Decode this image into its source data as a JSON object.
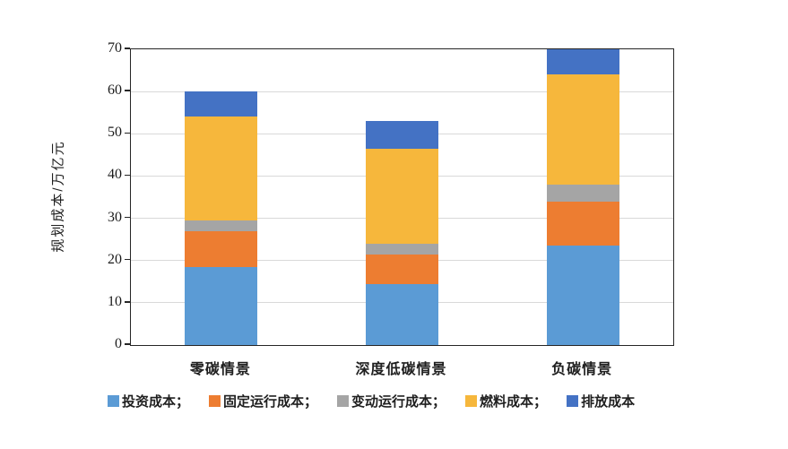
{
  "chart_data": {
    "type": "bar",
    "stacked": true,
    "title": "",
    "xlabel": "",
    "ylabel": "规划成本/万亿元",
    "ylim": [
      0,
      70
    ],
    "yticks": [
      0,
      10,
      20,
      30,
      40,
      50,
      60,
      70
    ],
    "grid": true,
    "legend_position": "bottom",
    "categories": [
      "零碳情景",
      "深度低碳情景",
      "负碳情景"
    ],
    "series": [
      {
        "name": "投资成本",
        "color": "#5B9BD5",
        "values": [
          18.5,
          14.5,
          23.5
        ]
      },
      {
        "name": "固定运行成本",
        "color": "#ED7D31",
        "values": [
          8.5,
          7.0,
          10.5
        ]
      },
      {
        "name": "变动运行成本",
        "color": "#A5A5A5",
        "values": [
          2.5,
          2.5,
          4.0
        ]
      },
      {
        "name": "燃料成本",
        "color": "#F6B73C",
        "values": [
          24.5,
          22.5,
          26.0
        ]
      },
      {
        "name": "排放成本",
        "color": "#4472C4",
        "values": [
          6.0,
          6.5,
          6.0
        ]
      }
    ],
    "legend_labels": [
      "投资成本；",
      "固定运行成本；",
      "变动运行成本；",
      "燃料成本；",
      "排放成本"
    ]
  }
}
